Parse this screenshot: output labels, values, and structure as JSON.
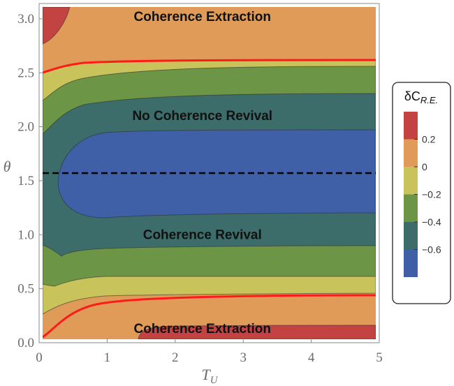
{
  "chart_data": {
    "type": "contour",
    "xlabel": "T",
    "xlabel_sub": "U",
    "ylabel": "θ",
    "xlim": [
      0,
      5
    ],
    "ylim": [
      0,
      3.14159
    ],
    "x_ticks": [
      "0",
      "1",
      "2",
      "3",
      "4",
      "5"
    ],
    "y_ticks": [
      "0.0",
      "0.5",
      "1.0",
      "1.5",
      "2.0",
      "2.5",
      "3.0"
    ],
    "legend": {
      "title_main": "δC",
      "title_sub": "R.E.",
      "levels": [
        0.2,
        0,
        -0.2,
        -0.4,
        -0.6
      ],
      "level_labels": [
        "0.2",
        "0",
        "−0.2",
        "−0.4",
        "−0.6"
      ],
      "colors": [
        "#c34343",
        "#df9b57",
        "#c8c35a",
        "#6c9646",
        "#3c6d6a",
        "#3f5fa6"
      ]
    },
    "region_labels": [
      {
        "text": "Coherence Extraction",
        "x": 2.4,
        "y": 3.02
      },
      {
        "text": "No Coherence Revival",
        "x": 2.4,
        "y": 2.1
      },
      {
        "text": "Coherence Revival",
        "x": 2.4,
        "y": 1.0
      },
      {
        "text": "Coherence Extraction",
        "x": 2.4,
        "y": 0.13
      }
    ],
    "zero_contour_color": "#ff1a1a",
    "reference_line": {
      "y": 1.5708,
      "style": "dashed",
      "color": "#000000"
    }
  }
}
